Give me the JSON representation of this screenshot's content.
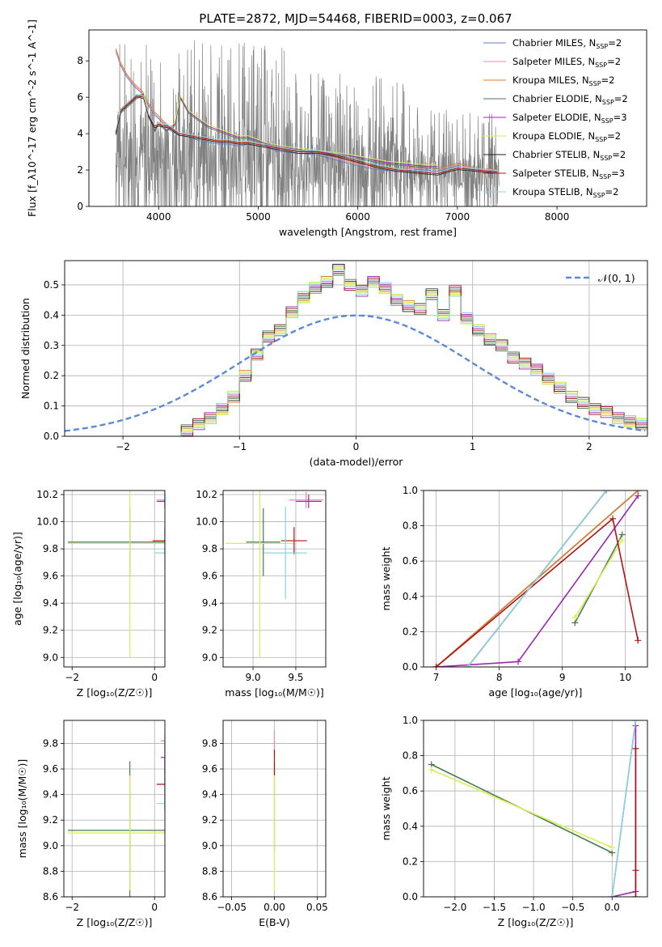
{
  "figure": {
    "title": "PLATE=2872, MJD=54468, FIBERID=0003, z=0.067"
  },
  "colors": {
    "Chabrier MILES": "#5a7fc0",
    "Salpeter MILES": "#e88ab8",
    "Kroupa MILES": "#d87f2a",
    "Chabrier ELODIE": "#4e7a4e",
    "Salpeter ELODIE": "#9b27b0",
    "Kroupa ELODIE": "#d4ef5a",
    "Chabrier STELIB": "#222222",
    "Salpeter STELIB": "#b01515",
    "Kroupa STELIB": "#8fd3e0",
    "data": "#808080",
    "gauss": "#5b8bd6"
  },
  "chart_data": [
    {
      "id": "spectrum",
      "type": "line",
      "title": "PLATE=2872, MJD=54468, FIBERID=0003, z=0.067",
      "xlabel": "wavelength [Angstrom, rest frame]",
      "ylabel": "Flux [f_λ10^-17 erg cm^-2 s^-1 A^-1]",
      "xlim": [
        3300,
        8900
      ],
      "ylim": [
        0,
        9.7
      ],
      "xticks": [
        "4000",
        "5000",
        "6000",
        "7000",
        "8000"
      ],
      "yticks": [
        "0",
        "2",
        "4",
        "6",
        "8"
      ],
      "legend_position": "top-right",
      "legend": [
        {
          "label": "Chabrier MILES, N",
          "sub": "SSP",
          "suffix": "=2",
          "model": "Chabrier MILES"
        },
        {
          "label": "Salpeter MILES, N",
          "sub": "SSP",
          "suffix": "=2",
          "model": "Salpeter MILES"
        },
        {
          "label": "Kroupa MILES, N",
          "sub": "SSP",
          "suffix": "=2",
          "model": "Kroupa MILES"
        },
        {
          "label": "Chabrier ELODIE, N",
          "sub": "SSP",
          "suffix": "=2",
          "model": "Chabrier ELODIE"
        },
        {
          "label": "Salpeter ELODIE, N",
          "sub": "SSP",
          "suffix": "=3",
          "model": "Salpeter ELODIE"
        },
        {
          "label": "Kroupa ELODIE, N",
          "sub": "SSP",
          "suffix": "=2",
          "model": "Kroupa ELODIE"
        },
        {
          "label": "Chabrier STELIB, N",
          "sub": "SSP",
          "suffix": "=2",
          "model": "Chabrier STELIB"
        },
        {
          "label": "Salpeter STELIB, N",
          "sub": "SSP",
          "suffix": "=3",
          "model": "Salpeter STELIB"
        },
        {
          "label": "Kroupa STELIB, N",
          "sub": "SSP",
          "suffix": "=2",
          "model": "Kroupa STELIB"
        }
      ],
      "model_points": {
        "MILES": [
          [
            3570,
            8.6
          ],
          [
            3620,
            7.8
          ],
          [
            3680,
            7.2
          ],
          [
            3750,
            6.7
          ],
          [
            3830,
            6.3
          ],
          [
            3900,
            5.6
          ],
          [
            3960,
            5.1
          ],
          [
            4000,
            4.9
          ],
          [
            4100,
            4.3
          ],
          [
            4200,
            4.0
          ],
          [
            4300,
            3.9
          ],
          [
            4400,
            3.7
          ],
          [
            4500,
            3.6
          ],
          [
            4600,
            3.5
          ],
          [
            4700,
            3.5
          ],
          [
            4800,
            3.4
          ],
          [
            4900,
            3.5
          ],
          [
            5000,
            3.4
          ],
          [
            5100,
            3.3
          ],
          [
            5200,
            3.1
          ],
          [
            5400,
            3.0
          ],
          [
            5600,
            2.9
          ],
          [
            5800,
            2.6
          ],
          [
            6000,
            2.3
          ],
          [
            6200,
            2.1
          ],
          [
            6400,
            2.0
          ],
          [
            6600,
            2.1
          ],
          [
            6800,
            2.0
          ],
          [
            7000,
            2.3
          ],
          [
            7200,
            2.0
          ],
          [
            7400,
            1.95
          ]
        ],
        "ELODIE": [
          [
            3570,
            4.0
          ],
          [
            3620,
            5.2
          ],
          [
            3700,
            5.6
          ],
          [
            3780,
            6.0
          ],
          [
            3850,
            6.2
          ],
          [
            3900,
            5.0
          ],
          [
            3960,
            4.2
          ],
          [
            4000,
            4.6
          ],
          [
            4080,
            4.2
          ],
          [
            4160,
            4.5
          ],
          [
            4220,
            6.0
          ],
          [
            4300,
            5.2
          ],
          [
            4400,
            4.8
          ],
          [
            4500,
            4.4
          ],
          [
            4600,
            4.2
          ],
          [
            4700,
            4.0
          ],
          [
            4800,
            3.8
          ],
          [
            4900,
            3.8
          ],
          [
            5000,
            3.6
          ],
          [
            5100,
            3.4
          ],
          [
            5300,
            3.2
          ],
          [
            5600,
            3.0
          ],
          [
            5900,
            2.8
          ],
          [
            6100,
            2.6
          ],
          [
            6300,
            2.4
          ],
          [
            6500,
            2.3
          ],
          [
            6700,
            2.2
          ],
          [
            6800,
            2.2
          ]
        ],
        "STELIB": [
          [
            3570,
            4.1
          ],
          [
            3620,
            5.3
          ],
          [
            3700,
            5.7
          ],
          [
            3780,
            6.1
          ],
          [
            3850,
            6.0
          ],
          [
            3900,
            5.0
          ],
          [
            3960,
            4.4
          ],
          [
            4000,
            4.5
          ],
          [
            4100,
            4.4
          ],
          [
            4200,
            4.0
          ],
          [
            4300,
            3.9
          ],
          [
            4400,
            3.8
          ],
          [
            4500,
            3.7
          ],
          [
            4600,
            3.6
          ],
          [
            4700,
            3.6
          ],
          [
            4800,
            3.5
          ],
          [
            4900,
            3.5
          ],
          [
            5000,
            3.4
          ],
          [
            5200,
            3.2
          ],
          [
            5400,
            3.0
          ],
          [
            5600,
            3.0
          ],
          [
            5800,
            2.8
          ],
          [
            6000,
            2.5
          ],
          [
            6200,
            2.2
          ],
          [
            6400,
            2.0
          ],
          [
            6600,
            1.9
          ],
          [
            6800,
            1.8
          ],
          [
            7000,
            2.1
          ],
          [
            7200,
            2.0
          ],
          [
            7400,
            1.9
          ]
        ]
      }
    },
    {
      "id": "residuals",
      "type": "line",
      "xlabel": "(data-model)/error",
      "ylabel": "Normed distribution",
      "xlim": [
        -2.5,
        2.5
      ],
      "ylim": [
        0,
        0.58
      ],
      "xticks": [
        "−2",
        "−1",
        "0",
        "1",
        "2"
      ],
      "yticks": [
        "0.0",
        "0.1",
        "0.2",
        "0.3",
        "0.4",
        "0.5"
      ],
      "legend_position": "top-right",
      "legend_label": "𝒩(0, 1)",
      "bin_width": 0.1,
      "histogram": {
        "x_start": -1.5,
        "values": [
          0.02,
          0.04,
          0.06,
          0.09,
          0.13,
          0.2,
          0.27,
          0.33,
          0.35,
          0.41,
          0.46,
          0.49,
          0.51,
          0.55,
          0.5,
          0.48,
          0.51,
          0.49,
          0.45,
          0.43,
          0.42,
          0.47,
          0.4,
          0.48,
          0.39,
          0.35,
          0.32,
          0.3,
          0.26,
          0.24,
          0.22,
          0.19,
          0.16,
          0.13,
          0.11,
          0.09,
          0.08,
          0.06,
          0.05,
          0.04
        ]
      }
    },
    {
      "id": "age-vs-Z",
      "type": "scatter",
      "xlabel": "Z [log₁₀(Z/Z☉)]",
      "ylabel": "age  [log₁₀(age/yr)]",
      "xlim": [
        -2.2,
        0.25
      ],
      "ylim": [
        8.93,
        10.23
      ],
      "xticks": [
        "−2",
        "0"
      ],
      "yticks": [
        "9.0",
        "9.2",
        "9.4",
        "9.6",
        "9.8",
        "10.0",
        "10.2"
      ],
      "points": [
        {
          "model": "Chabrier ELODIE",
          "x": -0.6,
          "y": 9.85,
          "xerr": 1.5,
          "yerr": 0.25
        },
        {
          "model": "Kroupa ELODIE",
          "x": -0.6,
          "y": 9.84,
          "xerr": 1.5,
          "yerr": 0.84
        },
        {
          "model": "Salpeter STELIB",
          "x": 0.25,
          "y": 9.86,
          "xerr": 0.3,
          "yerr": 0.1
        },
        {
          "model": "Kroupa STELIB",
          "x": 0.25,
          "y": 9.77,
          "xerr": 0.25,
          "yerr": 0.08
        },
        {
          "model": "Salpeter MILES",
          "x": 0.25,
          "y": 10.16,
          "xerr": 0.2,
          "yerr": 0.06
        },
        {
          "model": "Salpeter ELODIE",
          "x": 0.25,
          "y": 10.15,
          "xerr": 0.2,
          "yerr": 0.05
        }
      ]
    },
    {
      "id": "age-vs-mass",
      "type": "scatter",
      "xlabel": "mass [log₁₀(M/M☉)]",
      "ylabel": "",
      "xlim": [
        8.65,
        9.85
      ],
      "ylim": [
        8.93,
        10.23
      ],
      "xticks": [
        "9.0",
        "9.5"
      ],
      "yticks": [
        "9.0",
        "9.2",
        "9.4",
        "9.6",
        "9.8",
        "10.0",
        "10.2"
      ],
      "points": [
        {
          "model": "Chabrier ELODIE",
          "x": 9.12,
          "y": 9.85,
          "xerr": 0.2,
          "yerr": 0.25
        },
        {
          "model": "Kroupa ELODIE",
          "x": 9.08,
          "y": 9.84,
          "xerr": 0.4,
          "yerr": 0.84
        },
        {
          "model": "Salpeter STELIB",
          "x": 9.48,
          "y": 9.86,
          "xerr": 0.15,
          "yerr": 0.1
        },
        {
          "model": "Kroupa STELIB",
          "x": 9.38,
          "y": 9.77,
          "xerr": 0.25,
          "yerr": 0.34
        },
        {
          "model": "Salpeter MILES",
          "x": 9.62,
          "y": 10.16,
          "xerr": 0.2,
          "yerr": 0.06
        },
        {
          "model": "Salpeter ELODIE",
          "x": 9.65,
          "y": 10.15,
          "xerr": 0.15,
          "yerr": 0.05
        }
      ]
    },
    {
      "id": "mass-weight-vs-age",
      "type": "line",
      "xlabel": "age  [log₁₀(age/yr)]",
      "ylabel": "mass weight",
      "xlim": [
        6.8,
        10.35
      ],
      "ylim": [
        0,
        1
      ],
      "xticks": [
        "7",
        "8",
        "9",
        "10"
      ],
      "yticks": [
        "0.0",
        "0.2",
        "0.4",
        "0.6",
        "0.8",
        "1.0"
      ],
      "series": [
        {
          "model": "Chabrier MILES",
          "x": [
            7.0,
            10.2
          ],
          "y": [
            0.0,
            1.0
          ]
        },
        {
          "model": "Salpeter MILES",
          "x": [
            7.0,
            10.2
          ],
          "y": [
            0.0,
            1.0
          ]
        },
        {
          "model": "Kroupa MILES",
          "x": [
            7.0,
            10.2
          ],
          "y": [
            0.0,
            1.0
          ]
        },
        {
          "model": "Chabrier ELODIE",
          "x": [
            9.2,
            9.95
          ],
          "y": [
            0.25,
            0.75
          ]
        },
        {
          "model": "Salpeter ELODIE",
          "x": [
            7.0,
            8.3,
            10.2
          ],
          "y": [
            0.0,
            0.03,
            0.97
          ]
        },
        {
          "model": "Kroupa ELODIE",
          "x": [
            9.2,
            9.95
          ],
          "y": [
            0.28,
            0.72
          ]
        },
        {
          "model": "Chabrier STELIB",
          "x": [
            7.5,
            9.7
          ],
          "y": [
            0.0,
            1.0
          ]
        },
        {
          "model": "Salpeter STELIB",
          "x": [
            7.0,
            9.8,
            10.2
          ],
          "y": [
            0.0,
            0.84,
            0.15
          ]
        },
        {
          "model": "Kroupa STELIB",
          "x": [
            7.5,
            9.7
          ],
          "y": [
            0.0,
            1.0
          ]
        }
      ]
    },
    {
      "id": "mass-vs-Z",
      "type": "scatter",
      "xlabel": "Z [log₁₀(Z/Z☉)]",
      "ylabel": "mass [log₁₀(M/M☉)]",
      "xlim": [
        -2.2,
        0.25
      ],
      "ylim": [
        8.6,
        9.98
      ],
      "xticks": [
        "−2",
        "0"
      ],
      "yticks": [
        "8.6",
        "8.8",
        "9.0",
        "9.2",
        "9.4",
        "9.6",
        "9.8"
      ],
      "points": [
        {
          "model": "Chabrier ELODIE",
          "x": -0.6,
          "y": 9.12,
          "xerr": 1.5,
          "yerr": 0.54
        },
        {
          "model": "Kroupa ELODIE",
          "x": -0.6,
          "y": 9.1,
          "xerr": 1.5,
          "yerr": 0.45
        },
        {
          "model": "Salpeter STELIB",
          "x": 0.25,
          "y": 9.48,
          "xerr": 0.2,
          "yerr": 0.2
        },
        {
          "model": "Kroupa STELIB",
          "x": 0.25,
          "y": 9.33,
          "xerr": 0.2,
          "yerr": 0.07
        },
        {
          "model": "Salpeter MILES",
          "x": 0.25,
          "y": 9.82,
          "xerr": 0.1,
          "yerr": 0.05
        },
        {
          "model": "Salpeter ELODIE",
          "x": 0.25,
          "y": 9.69,
          "xerr": 0.1,
          "yerr": 0.12
        }
      ]
    },
    {
      "id": "mass-vs-EBV",
      "type": "scatter",
      "xlabel": "E(B-V)",
      "ylabel": "",
      "xlim": [
        -0.06,
        0.06
      ],
      "ylim": [
        8.6,
        9.98
      ],
      "xticks": [
        "−0.05",
        "0.00",
        "0.05"
      ],
      "yticks": [
        "8.6",
        "8.8",
        "9.0",
        "9.2",
        "9.4",
        "9.6",
        "9.8"
      ],
      "points": [
        {
          "model": "Chabrier ELODIE",
          "x": 0.0,
          "y": 9.3,
          "xerr": 0.0,
          "yerr": 0.35
        },
        {
          "model": "Kroupa ELODIE",
          "x": 0.0,
          "y": 9.2,
          "xerr": 0.0,
          "yerr": 0.55
        },
        {
          "model": "Salpeter MILES",
          "x": 0.0,
          "y": 9.8,
          "xerr": 0.0,
          "yerr": 0.1
        },
        {
          "model": "Salpeter STELIB",
          "x": 0.0,
          "y": 9.65,
          "xerr": 0.0,
          "yerr": 0.1
        }
      ]
    },
    {
      "id": "mass-weight-vs-Z",
      "type": "line",
      "xlabel": "Z [log₁₀(Z/Z☉)]",
      "ylabel": "mass weight",
      "xlim": [
        -2.4,
        0.45
      ],
      "ylim": [
        0,
        1
      ],
      "xticks": [
        "−2.0",
        "−1.5",
        "−1.0",
        "−0.5",
        "0.0"
      ],
      "yticks": [
        "0.0",
        "0.2",
        "0.4",
        "0.6",
        "0.8",
        "1.0"
      ],
      "series": [
        {
          "model": "Chabrier ELODIE",
          "x": [
            -2.3,
            0.0
          ],
          "y": [
            0.75,
            0.25
          ]
        },
        {
          "model": "Kroupa ELODIE",
          "x": [
            -2.3,
            0.0
          ],
          "y": [
            0.72,
            0.28
          ]
        },
        {
          "model": "Chabrier MILES",
          "x": [
            0.0,
            0.3
          ],
          "y": [
            0.0,
            1.0
          ]
        },
        {
          "model": "Salpeter ELODIE",
          "x": [
            0.0,
            0.3,
            0.3
          ],
          "y": [
            0.0,
            0.03,
            0.97
          ]
        },
        {
          "model": "Salpeter STELIB",
          "x": [
            0.3,
            0.3,
            0.3
          ],
          "y": [
            0.0,
            0.15,
            0.84
          ]
        },
        {
          "model": "Kroupa STELIB",
          "x": [
            0.0,
            0.3
          ],
          "y": [
            0.0,
            1.0
          ]
        }
      ]
    }
  ]
}
